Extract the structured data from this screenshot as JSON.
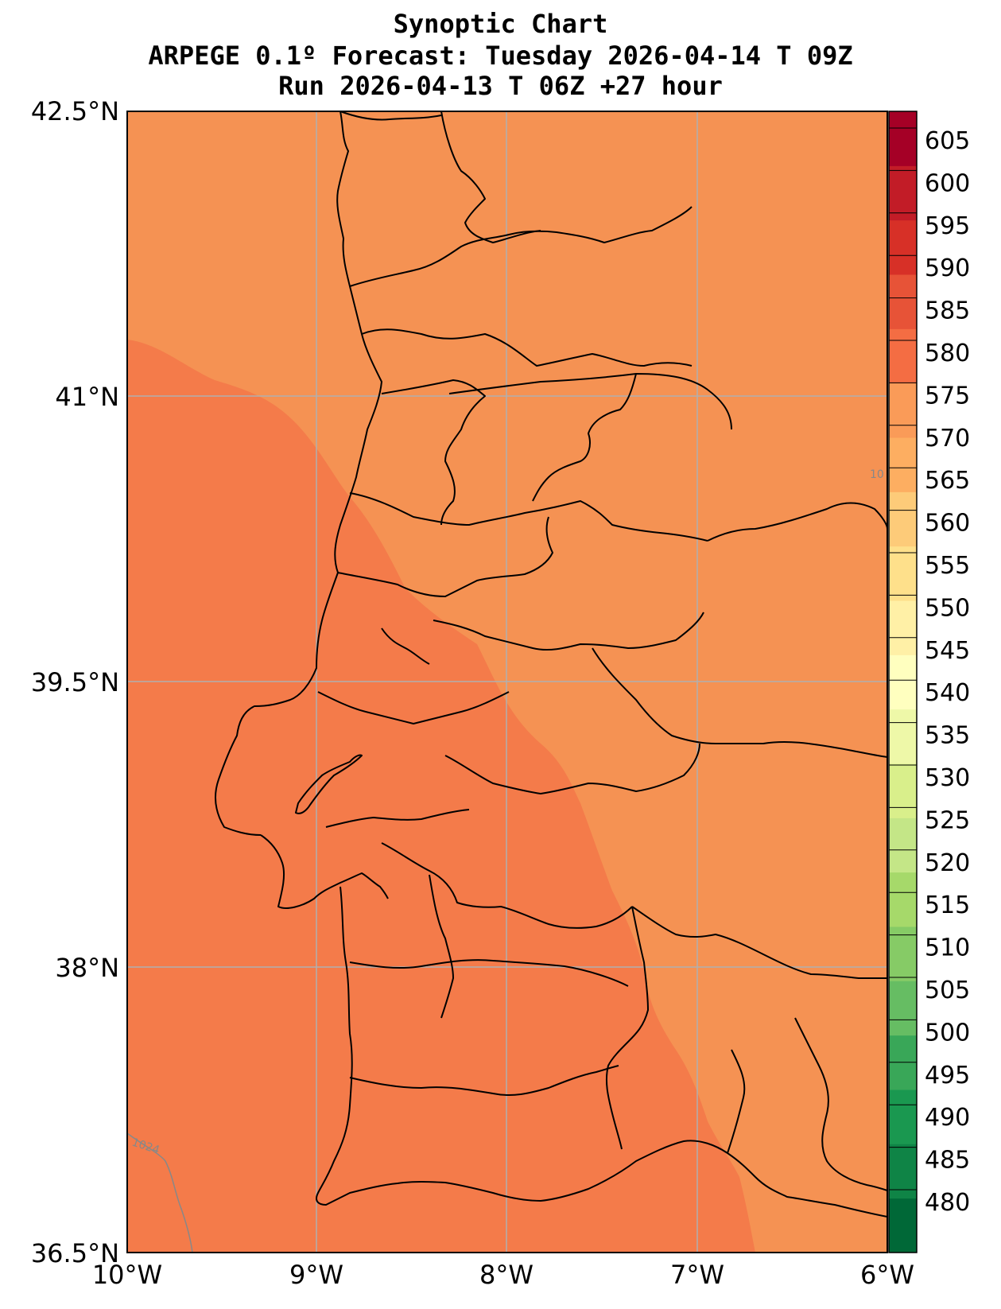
{
  "title": {
    "line1": "Synoptic Chart",
    "line2": "ARPEGE 0.1º Forecast: Tuesday 2026-04-14 T 09Z",
    "line3": "Run 2026-04-13 T 06Z +27 hour"
  },
  "axes": {
    "lat_labels": [
      "42.5°N",
      "41°N",
      "39.5°N",
      "38°N",
      "36.5°N"
    ],
    "lon_labels": [
      "10°W",
      "9°W",
      "8°W",
      "7°W",
      "6°W"
    ],
    "lat_values": [
      42.5,
      41,
      39.5,
      38,
      36.5
    ],
    "lon_values": [
      -10,
      -9,
      -8,
      -7,
      -6
    ]
  },
  "colorbar": {
    "levels": [
      480,
      485,
      490,
      495,
      500,
      505,
      510,
      515,
      520,
      525,
      530,
      535,
      540,
      545,
      550,
      555,
      560,
      565,
      570,
      575,
      580,
      585,
      590,
      595,
      600,
      605
    ],
    "colors": [
      "#006837",
      "#0f8446",
      "#1a9850",
      "#39a758",
      "#66bd63",
      "#86cb66",
      "#a6d96a",
      "#c4e687",
      "#d9ef8b",
      "#eef8a8",
      "#ffffbf",
      "#fff0a6",
      "#fee08b",
      "#fdcb79",
      "#fdae61",
      "#fa9b58",
      "#f46d43",
      "#e75337",
      "#d73027",
      "#c21c27",
      "#a50026"
    ]
  },
  "fields": {
    "land_color": "#f59253",
    "sea_color": "#f47b4a",
    "outline_color": "#000000",
    "grid_color": "#b0b0b0",
    "isobar_color": "#888888"
  },
  "isobar_labels": [
    "1024",
    "10"
  ]
}
